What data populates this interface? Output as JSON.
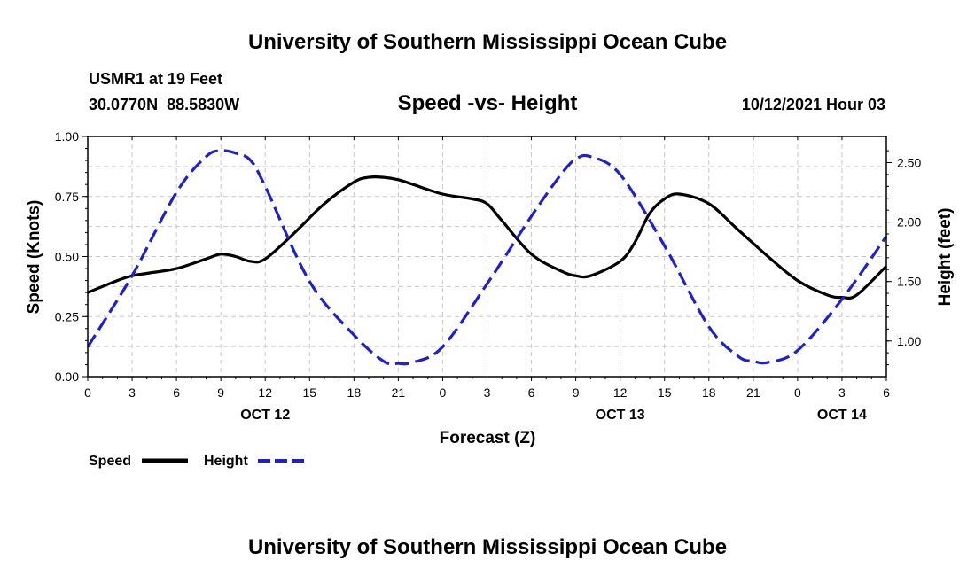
{
  "header": {
    "title": "University of Southern Mississippi Ocean Cube",
    "station": "USMR1 at 19 Feet",
    "coords": "30.0770N  88.5830W",
    "plot_title": "Speed -vs- Height",
    "datetime": "10/12/2021 Hour 03"
  },
  "footer": {
    "title": "University of Southern Mississippi Ocean Cube"
  },
  "chart_data": {
    "type": "line",
    "title": "Speed -vs- Height",
    "xlabel": "Forecast (Z)",
    "ylabel": "Speed (Knots)",
    "ylabel_right": "Height (feet)",
    "x_ticks": [
      "0",
      "3",
      "6",
      "9",
      "12",
      "15",
      "18",
      "21",
      "0",
      "3",
      "6",
      "9",
      "12",
      "15",
      "18",
      "21",
      "0",
      "3",
      "6"
    ],
    "x_tick_hours": [
      0,
      3,
      6,
      9,
      12,
      15,
      18,
      21,
      24,
      27,
      30,
      33,
      36,
      39,
      42,
      45,
      48,
      51,
      54
    ],
    "date_labels": [
      {
        "label": "OCT 12",
        "hour": 12
      },
      {
        "label": "OCT 13",
        "hour": 36
      },
      {
        "label": "OCT 14",
        "hour": 51
      }
    ],
    "xlim": [
      0,
      54
    ],
    "ylim": [
      0,
      1
    ],
    "y_ticks": [
      "0.00",
      "0.25",
      "0.50",
      "0.75",
      "1.00"
    ],
    "y_tick_values": [
      0,
      0.25,
      0.5,
      0.75,
      1.0
    ],
    "ylim_right": [
      0.7,
      2.72
    ],
    "y2_ticks": [
      "1.00",
      "1.50",
      "2.00",
      "2.50"
    ],
    "y2_tick_values": [
      1.0,
      1.5,
      2.0,
      2.5
    ],
    "grid": true,
    "legend": [
      {
        "label": "Speed",
        "color": "#000000",
        "style": "solid"
      },
      {
        "label": "Height",
        "color": "#1f1fd0",
        "style": "dashed"
      }
    ],
    "series": [
      {
        "name": "Speed",
        "axis": "left",
        "color": "#000000",
        "style": "solid",
        "x": [
          0,
          2,
          3,
          4,
          6,
          8,
          9,
          10,
          11,
          12,
          14,
          16,
          18,
          19,
          20,
          21,
          22,
          24,
          26,
          27,
          28,
          30,
          32,
          33,
          34,
          36,
          37,
          38,
          39,
          40,
          42,
          44,
          46,
          48,
          50,
          51,
          52,
          54
        ],
        "values": [
          0.35,
          0.4,
          0.42,
          0.43,
          0.45,
          0.49,
          0.51,
          0.5,
          0.48,
          0.49,
          0.6,
          0.72,
          0.81,
          0.83,
          0.83,
          0.82,
          0.8,
          0.76,
          0.74,
          0.72,
          0.65,
          0.51,
          0.44,
          0.42,
          0.42,
          0.48,
          0.56,
          0.68,
          0.74,
          0.76,
          0.72,
          0.61,
          0.5,
          0.4,
          0.34,
          0.33,
          0.34,
          0.46
        ]
      },
      {
        "name": "Height",
        "axis": "right",
        "color": "#1f1fd0",
        "style": "dashed",
        "x": [
          0,
          3,
          6,
          8,
          9,
          10,
          11,
          12,
          15,
          18,
          20,
          21,
          22,
          24,
          27,
          30,
          32,
          33,
          34,
          36,
          39,
          42,
          44,
          45,
          46,
          48,
          51,
          54
        ],
        "values": [
          0.95,
          1.55,
          2.25,
          2.55,
          2.6,
          2.58,
          2.52,
          2.3,
          1.5,
          1.05,
          0.83,
          0.81,
          0.82,
          0.95,
          1.48,
          2.05,
          2.4,
          2.53,
          2.55,
          2.4,
          1.8,
          1.12,
          0.87,
          0.83,
          0.82,
          0.92,
          1.35,
          1.88
        ]
      }
    ]
  }
}
